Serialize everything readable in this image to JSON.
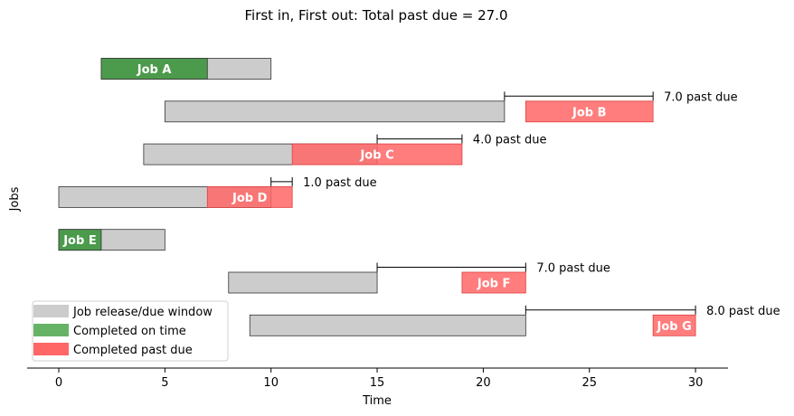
{
  "chart_data": {
    "type": "gantt",
    "title": "First in, First out: Total past due = 27.0",
    "xlabel": "Time",
    "ylabel": "Jobs",
    "xlim": [
      -1.5,
      31.5
    ],
    "xticks": [
      0,
      5,
      10,
      15,
      20,
      25,
      30
    ],
    "grid": false,
    "legend_position": "lower-left",
    "legend": [
      {
        "label": "Job release/due window",
        "color": "#cccccc"
      },
      {
        "label": "Completed on time",
        "color": "#66b366"
      },
      {
        "label": "Completed past due",
        "color": "#ff6666"
      }
    ],
    "colors": {
      "window": "#cccccc",
      "on_time": "#4c9a4c",
      "past_due": "#ff6666"
    },
    "jobs": [
      {
        "name": "Job A",
        "release": 2,
        "due": 10,
        "start": 2,
        "end": 7,
        "status": "on_time",
        "past_due": 0,
        "past_due_label": ""
      },
      {
        "name": "Job B",
        "release": 5,
        "due": 21,
        "start": 22,
        "end": 28,
        "status": "past_due",
        "past_due": 7.0,
        "past_due_label": "7.0 past due"
      },
      {
        "name": "Job C",
        "release": 4,
        "due": 15,
        "start": 11,
        "end": 19,
        "status": "past_due",
        "past_due": 4.0,
        "past_due_label": "4.0 past due"
      },
      {
        "name": "Job D",
        "release": 0,
        "due": 10,
        "start": 7,
        "end": 11,
        "status": "past_due",
        "past_due": 1.0,
        "past_due_label": "1.0 past due"
      },
      {
        "name": "Job E",
        "release": 0,
        "due": 5,
        "start": 0,
        "end": 2,
        "status": "on_time",
        "past_due": 0,
        "past_due_label": ""
      },
      {
        "name": "Job F",
        "release": 8,
        "due": 15,
        "start": 19,
        "end": 22,
        "status": "past_due",
        "past_due": 7.0,
        "past_due_label": "7.0 past due"
      },
      {
        "name": "Job G",
        "release": 9,
        "due": 22,
        "start": 28,
        "end": 30,
        "status": "past_due",
        "past_due": 8.0,
        "past_due_label": "8.0 past due"
      }
    ]
  }
}
